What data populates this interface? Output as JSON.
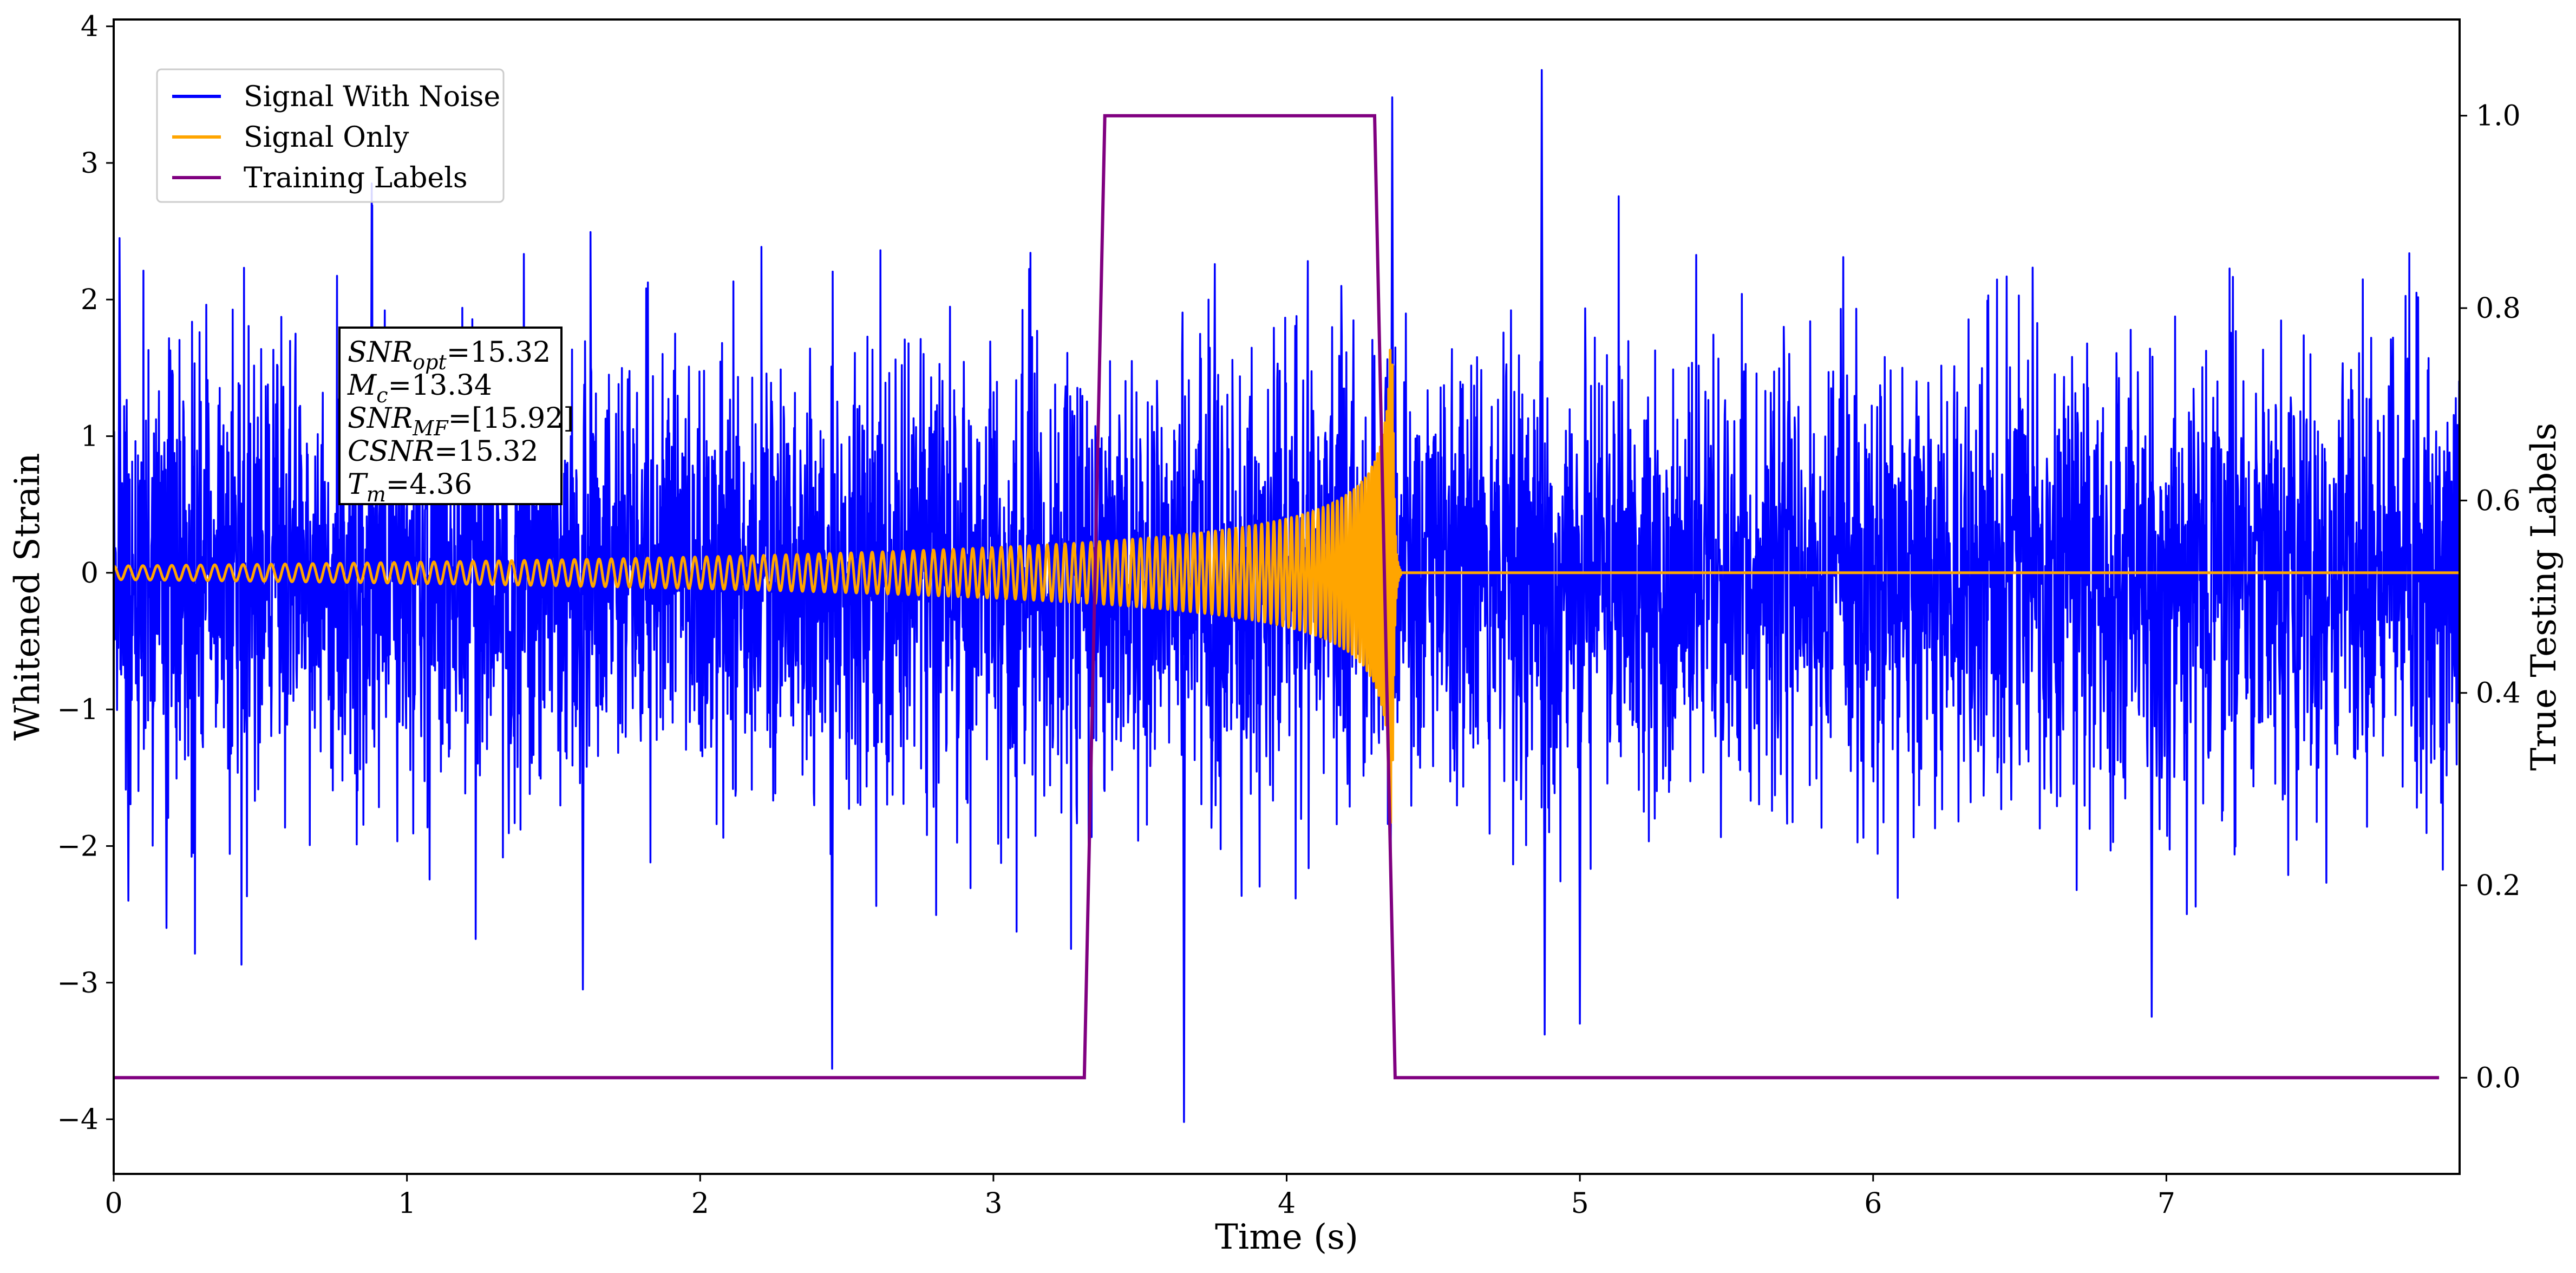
{
  "chart_data": {
    "type": "line",
    "xlabel": "Time (s)",
    "ylabel_left": "Whitened Strain",
    "ylabel_right": "True Testing Labels",
    "xlim": [
      0,
      8.0
    ],
    "ylim_left": [
      -4.4,
      4.05
    ],
    "ylim_right": [
      -0.1,
      1.1
    ],
    "x_ticks": [
      0,
      1,
      2,
      3,
      4,
      5,
      6,
      7
    ],
    "y_left_ticks": [
      {
        "value": 4,
        "label": "4"
      },
      {
        "value": 3,
        "label": "3"
      },
      {
        "value": 2,
        "label": "2"
      },
      {
        "value": 1,
        "label": "1"
      },
      {
        "value": 0,
        "label": "0"
      },
      {
        "value": -1,
        "label": "−1"
      },
      {
        "value": -2,
        "label": "−2"
      },
      {
        "value": -3,
        "label": "−3"
      },
      {
        "value": -4,
        "label": "−4"
      }
    ],
    "y_right_ticks": [
      {
        "value": 1.0,
        "label": "1.0"
      },
      {
        "value": 0.8,
        "label": "0.8"
      },
      {
        "value": 0.6,
        "label": "0.6"
      },
      {
        "value": 0.4,
        "label": "0.4"
      },
      {
        "value": 0.2,
        "label": "0.2"
      },
      {
        "value": 0.0,
        "label": "0.0"
      }
    ],
    "grid": false,
    "legend_placement": "upper-left",
    "series": [
      {
        "name": "Signal With Noise",
        "color": "#0000ff",
        "axis": "left",
        "description": "whitened strain noise, std ≈ 0.8",
        "noise_rms": 0.8,
        "x_range": [
          0,
          8.0
        ],
        "notable_spikes": [
          {
            "x": 4.87,
            "y": 3.68
          },
          {
            "x": 4.36,
            "y": 3.48
          },
          {
            "x": 0.88,
            "y": 2.85
          },
          {
            "x": 3.65,
            "y": -4.02
          },
          {
            "x": 2.45,
            "y": -3.63
          },
          {
            "x": 4.88,
            "y": -3.38
          },
          {
            "x": 5.0,
            "y": -3.3
          },
          {
            "x": 6.95,
            "y": -3.25
          },
          {
            "x": 1.6,
            "y": -3.05
          },
          {
            "x": 0.02,
            "y": 2.45
          },
          {
            "x": 0.05,
            "y": -2.4
          },
          {
            "x": 0.18,
            "y": -2.6
          }
        ]
      },
      {
        "name": "Signal Only",
        "color": "#ffa500",
        "axis": "left",
        "description": "binary-merger chirp waveform",
        "chirp_start_x": 0.0,
        "merger_time": 4.36,
        "initial_frequency_hz": 20,
        "initial_amplitude": 0.05,
        "peak_amplitude": 1.95,
        "x_range": [
          0,
          8.0
        ]
      },
      {
        "name": "Training Labels",
        "color": "#800080",
        "axis": "right",
        "x": [
          0.0,
          3.31,
          3.38,
          4.3,
          4.37,
          7.93
        ],
        "y": [
          0.0,
          0.0,
          1.0,
          1.0,
          0.0,
          0.0
        ]
      }
    ],
    "annotation": {
      "lines": [
        {
          "main": "SNR",
          "sub": "opt",
          "value": "=15.32"
        },
        {
          "main": "M",
          "sub": "c",
          "value": "=13.34"
        },
        {
          "main": "SNR",
          "sub": "MF",
          "value": "=[15.92]"
        },
        {
          "main": "CSNR",
          "sub": "",
          "value": "=15.32"
        },
        {
          "main": "T",
          "sub": "m",
          "value": "=4.36"
        }
      ]
    }
  }
}
